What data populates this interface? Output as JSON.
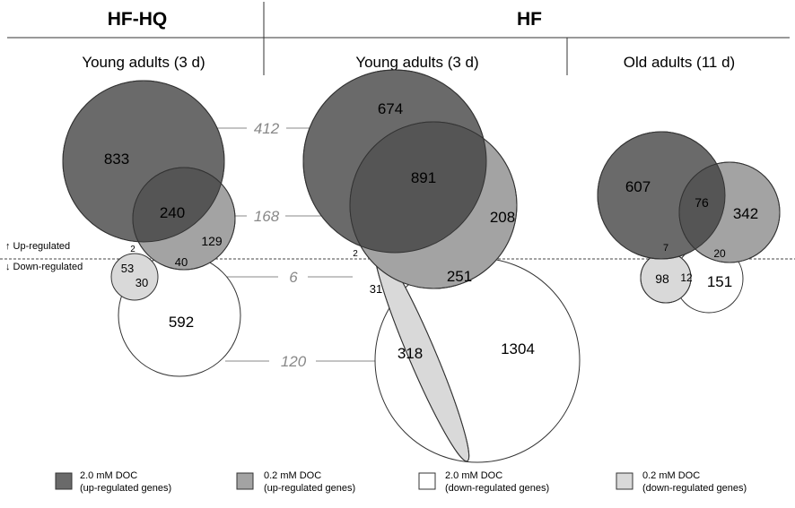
{
  "header": {
    "group_hfhq": "HF-HQ",
    "group_hf": "HF",
    "sub_hfhq_young": "Young adults (3 d)",
    "sub_hf_young": "Young adults (3 d)",
    "sub_hf_old": "Old adults (11 d)"
  },
  "regulation": {
    "up": "↑ Up-regulated",
    "down": "↓ Down-regulated"
  },
  "cross_overlaps": {
    "up_2mM": "412",
    "up_0_2mM": "168",
    "down_0_2mM": "6",
    "down_2mM": "120"
  },
  "hfhq_young": {
    "up_2mM_only": "833",
    "up_shared": "240",
    "up_0_2mM_only": "129",
    "up2_down02": "2",
    "up02_down2": "40",
    "down_0_2mM_only": "53",
    "down_shared": "30",
    "down_2mM_only": "592"
  },
  "hf_young": {
    "up_2mM_only": "674",
    "up_shared": "891",
    "up_0_2mM_only": "208",
    "up2_down02": "2",
    "up02_down2": "251",
    "down_0_2mM_only": "31",
    "down_shared": "318",
    "down_2mM_only": "1304"
  },
  "hf_old": {
    "up_2mM_only": "607",
    "up_shared": "76",
    "up_0_2mM_only": "342",
    "up2_down02": "7",
    "up02_down2": "20",
    "down_0_2mM_only": "98",
    "down_shared": "12",
    "down_2mM_only": "151"
  },
  "legend": [
    {
      "line1": "2.0 mM DOC",
      "line2": "(up-regulated genes)",
      "color": "#6a6a6a"
    },
    {
      "line1": "0.2 mM DOC",
      "line2": "(up-regulated genes)",
      "color": "#a3a3a3"
    },
    {
      "line1": "2.0 mM DOC",
      "line2": "(down-regulated genes)",
      "color": "#ffffff"
    },
    {
      "line1": "0.2 mM DOC",
      "line2": "(down-regulated genes)",
      "color": "#d9d9d9"
    }
  ],
  "colors": {
    "up_2mM": "#6a6a6a",
    "up_0_2mM": "#a3a3a3",
    "down_2mM": "#ffffff",
    "down_0_2mM": "#d9d9d9",
    "overlap_italic": "#888888"
  }
}
